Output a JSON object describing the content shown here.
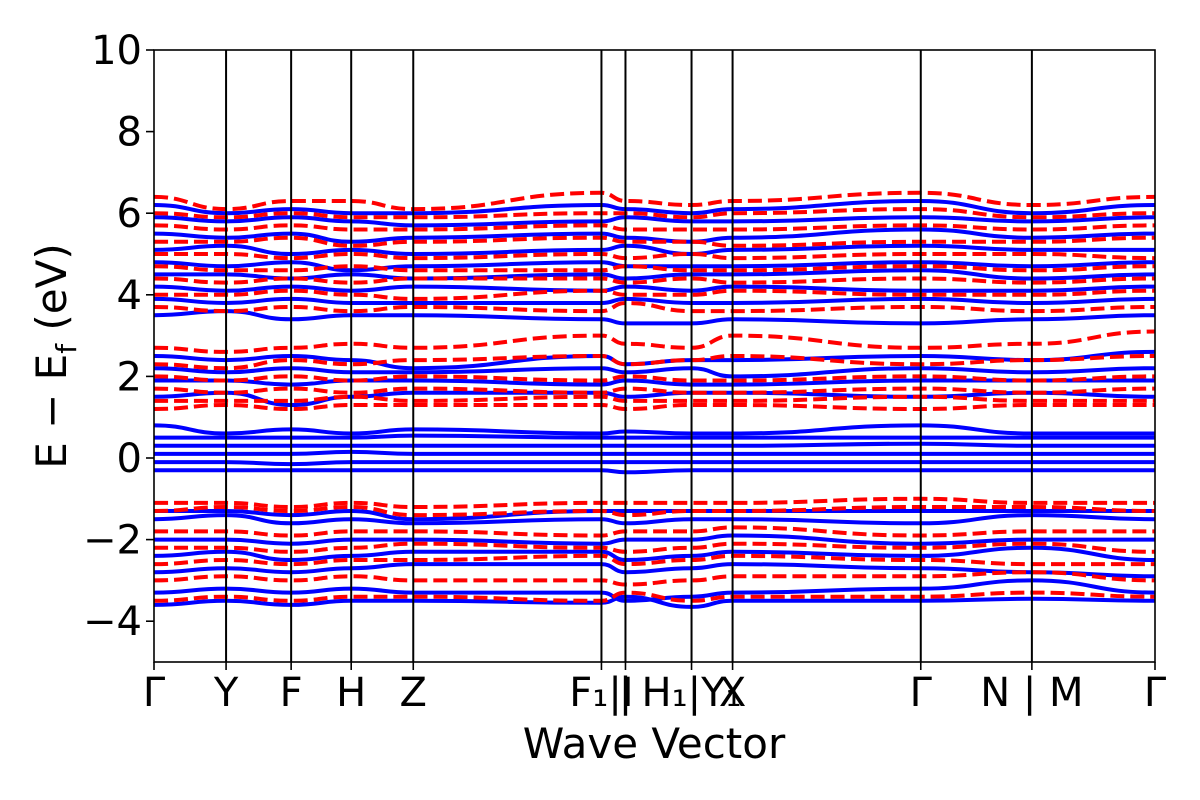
{
  "chart_data": {
    "type": "line",
    "title": "",
    "xlabel": "Wave Vector",
    "ylabel": {
      "prefix": "E − E",
      "sub": "f",
      "suffix": " (eV)"
    },
    "ylim": [
      -5,
      10
    ],
    "yticks": [
      {
        "value": -4,
        "label": "−4"
      },
      {
        "value": -2,
        "label": "−2"
      },
      {
        "value": 0,
        "label": "0"
      },
      {
        "value": 2,
        "label": "2"
      },
      {
        "value": 4,
        "label": "4"
      },
      {
        "value": 6,
        "label": "6"
      },
      {
        "value": 8,
        "label": "8"
      },
      {
        "value": 10,
        "label": "10"
      }
    ],
    "xlim": [
      0,
      1
    ],
    "kpoints": [
      {
        "x": 0.0,
        "label": "Γ"
      },
      {
        "x": 0.072,
        "label": "Y"
      },
      {
        "x": 0.137,
        "label": "F"
      },
      {
        "x": 0.197,
        "label": "H"
      },
      {
        "x": 0.259,
        "label": "Z"
      },
      {
        "x": 0.447,
        "label": "F₁|I"
      },
      {
        "x": 0.471,
        "label": "|"
      },
      {
        "x": 0.537,
        "label": "H₁|Y₁"
      },
      {
        "x": 0.578,
        "label": "X"
      },
      {
        "x": 0.766,
        "label": "Γ"
      },
      {
        "x": 0.877,
        "label": "N | M"
      },
      {
        "x": 1.0,
        "label": "Γ"
      }
    ],
    "grid": false,
    "colors": {
      "spin_up": "#0000ff",
      "spin_down": "#ff0000",
      "axes": "#000000"
    },
    "series": [
      {
        "style": "solid",
        "color": "#0000ff",
        "bands": [
          [
            -3.6,
            -3.5,
            -3.6,
            -3.5,
            -3.5,
            -3.55,
            -3.4,
            -3.65,
            -3.5,
            -3.5,
            -3.45,
            -3.5,
            -3.6
          ],
          [
            -3.3,
            -3.2,
            -3.3,
            -3.2,
            -3.3,
            -3.3,
            -3.5,
            -3.4,
            -3.3,
            -3.2,
            -3.0,
            -3.3,
            -3.5
          ],
          [
            -2.8,
            -2.7,
            -2.8,
            -2.7,
            -2.6,
            -2.6,
            -2.8,
            -2.7,
            -2.6,
            -2.7,
            -2.8,
            -2.9,
            -2.8
          ],
          [
            -2.4,
            -2.3,
            -2.5,
            -2.4,
            -2.3,
            -2.3,
            -2.5,
            -2.4,
            -2.3,
            -2.4,
            -2.2,
            -2.5,
            -2.4
          ],
          [
            -2.0,
            -2.0,
            -2.1,
            -2.0,
            -2.0,
            -2.1,
            -2.0,
            -2.0,
            -1.9,
            -2.1,
            -2.0,
            -2.0,
            -2.0
          ],
          [
            -1.5,
            -1.4,
            -1.6,
            -1.5,
            -1.6,
            -1.5,
            -1.6,
            -1.5,
            -1.5,
            -1.6,
            -1.4,
            -1.5,
            -1.6
          ],
          [
            -1.3,
            -1.3,
            -1.4,
            -1.3,
            -1.5,
            -1.3,
            -1.3,
            -1.3,
            -1.3,
            -1.3,
            -1.3,
            -1.3,
            -1.3
          ],
          [
            -0.3,
            -0.3,
            -0.3,
            -0.3,
            -0.3,
            -0.3,
            -0.35,
            -0.3,
            -0.3,
            -0.3,
            -0.3,
            -0.3,
            -0.3
          ],
          [
            -0.1,
            -0.1,
            -0.15,
            -0.1,
            -0.1,
            -0.1,
            -0.1,
            -0.1,
            -0.1,
            -0.1,
            -0.1,
            -0.1,
            -0.1
          ],
          [
            0.1,
            0.1,
            0.1,
            0.15,
            0.1,
            0.1,
            0.1,
            0.1,
            0.1,
            0.1,
            0.1,
            0.1,
            0.1
          ],
          [
            0.3,
            0.3,
            0.3,
            0.3,
            0.3,
            0.3,
            0.3,
            0.3,
            0.3,
            0.35,
            0.3,
            0.3,
            0.3
          ],
          [
            0.5,
            0.5,
            0.5,
            0.5,
            0.55,
            0.5,
            0.5,
            0.5,
            0.5,
            0.5,
            0.5,
            0.5,
            0.5
          ],
          [
            0.8,
            0.6,
            0.7,
            0.6,
            0.7,
            0.6,
            0.65,
            0.6,
            0.6,
            0.8,
            0.6,
            0.6,
            0.9
          ],
          [
            1.5,
            1.6,
            1.3,
            1.5,
            1.6,
            1.6,
            1.5,
            1.6,
            1.6,
            1.5,
            1.6,
            1.5,
            1.5
          ],
          [
            1.9,
            1.9,
            1.8,
            1.9,
            1.9,
            1.8,
            1.9,
            1.8,
            1.8,
            1.9,
            1.9,
            1.9,
            1.8
          ],
          [
            2.2,
            2.1,
            2.2,
            2.1,
            2.1,
            2.2,
            2.1,
            2.2,
            2.0,
            2.2,
            2.1,
            2.2,
            2.2
          ],
          [
            2.5,
            2.4,
            2.5,
            2.4,
            2.2,
            2.5,
            2.3,
            2.4,
            2.4,
            2.5,
            2.4,
            2.6,
            2.5
          ],
          [
            3.5,
            3.6,
            3.4,
            3.5,
            3.5,
            3.4,
            3.3,
            3.3,
            3.4,
            3.3,
            3.4,
            3.5,
            3.6
          ],
          [
            3.9,
            3.8,
            3.9,
            3.8,
            3.8,
            3.8,
            3.9,
            3.8,
            3.8,
            3.9,
            3.8,
            3.9,
            3.9
          ],
          [
            4.2,
            4.1,
            4.2,
            4.1,
            4.2,
            4.1,
            4.2,
            4.1,
            4.2,
            4.1,
            4.1,
            4.2,
            4.2
          ],
          [
            4.5,
            4.5,
            4.4,
            4.5,
            4.4,
            4.5,
            4.4,
            4.5,
            4.5,
            4.6,
            4.4,
            4.5,
            4.5
          ],
          [
            4.8,
            4.7,
            4.8,
            4.6,
            4.7,
            4.8,
            4.7,
            4.7,
            4.7,
            4.8,
            4.7,
            4.8,
            4.8
          ],
          [
            5.1,
            5.2,
            5.0,
            5.1,
            5.0,
            5.1,
            5.2,
            5.0,
            5.1,
            5.2,
            5.1,
            5.1,
            5.1
          ],
          [
            5.5,
            5.4,
            5.5,
            5.3,
            5.4,
            5.5,
            5.4,
            5.3,
            5.4,
            5.6,
            5.4,
            5.5,
            5.5
          ],
          [
            5.9,
            5.8,
            5.9,
            5.8,
            5.7,
            5.8,
            5.9,
            5.8,
            5.8,
            5.9,
            5.8,
            5.9,
            5.9
          ],
          [
            6.2,
            6.0,
            6.1,
            6.0,
            6.0,
            6.2,
            6.1,
            6.0,
            6.1,
            6.3,
            6.0,
            6.2,
            6.2
          ]
        ]
      },
      {
        "style": "dashed",
        "color": "#ff0000",
        "bands": [
          [
            -3.5,
            -3.4,
            -3.5,
            -3.4,
            -3.4,
            -3.5,
            -3.3,
            -3.5,
            -3.4,
            -3.4,
            -3.3,
            -3.4,
            -3.4
          ],
          [
            -3.0,
            -2.9,
            -3.0,
            -2.9,
            -3.0,
            -3.0,
            -3.1,
            -3.0,
            -2.9,
            -2.9,
            -2.8,
            -3.0,
            -3.1
          ],
          [
            -2.6,
            -2.5,
            -2.6,
            -2.5,
            -2.5,
            -2.4,
            -2.6,
            -2.5,
            -2.4,
            -2.5,
            -2.6,
            -2.6,
            -2.6
          ],
          [
            -2.2,
            -2.2,
            -2.3,
            -2.2,
            -2.1,
            -2.2,
            -2.3,
            -2.2,
            -2.1,
            -2.2,
            -2.1,
            -2.3,
            -2.2
          ],
          [
            -1.8,
            -1.8,
            -1.9,
            -1.8,
            -1.8,
            -1.9,
            -1.8,
            -1.8,
            -1.7,
            -1.9,
            -1.8,
            -1.8,
            -1.8
          ],
          [
            -1.3,
            -1.2,
            -1.3,
            -1.2,
            -1.4,
            -1.3,
            -1.4,
            -1.3,
            -1.3,
            -1.2,
            -1.2,
            -1.3,
            -1.3
          ],
          [
            -1.1,
            -1.1,
            -1.2,
            -1.1,
            -1.2,
            -1.1,
            -1.1,
            -1.1,
            -1.1,
            -1.0,
            -1.1,
            -1.1,
            -1.0
          ],
          [
            1.2,
            1.3,
            1.2,
            1.3,
            1.3,
            1.3,
            1.2,
            1.3,
            1.3,
            1.2,
            1.3,
            1.3,
            1.2
          ],
          [
            1.4,
            1.4,
            1.4,
            1.5,
            1.4,
            1.5,
            1.4,
            1.4,
            1.4,
            1.5,
            1.4,
            1.4,
            1.4
          ],
          [
            1.7,
            1.6,
            1.7,
            1.6,
            1.7,
            1.6,
            1.7,
            1.6,
            1.6,
            1.7,
            1.6,
            1.7,
            1.7
          ],
          [
            2.0,
            1.9,
            2.0,
            1.9,
            2.0,
            1.9,
            2.0,
            1.9,
            1.9,
            2.0,
            1.9,
            2.0,
            2.0
          ],
          [
            2.3,
            2.2,
            2.4,
            2.3,
            2.4,
            2.5,
            2.3,
            2.4,
            2.5,
            2.3,
            2.4,
            2.5,
            2.3
          ],
          [
            2.7,
            2.6,
            2.7,
            2.8,
            2.7,
            3.0,
            2.8,
            2.7,
            3.0,
            2.7,
            2.8,
            3.1,
            2.7
          ],
          [
            3.7,
            3.6,
            3.7,
            3.6,
            3.7,
            3.6,
            3.8,
            3.6,
            3.6,
            3.7,
            3.6,
            3.7,
            3.7
          ],
          [
            4.0,
            4.0,
            4.1,
            4.0,
            3.9,
            4.1,
            4.0,
            4.0,
            4.1,
            4.0,
            4.0,
            4.1,
            4.0
          ],
          [
            4.4,
            4.3,
            4.4,
            4.3,
            4.4,
            4.4,
            4.3,
            4.4,
            4.3,
            4.4,
            4.3,
            4.4,
            4.4
          ],
          [
            4.7,
            4.6,
            4.6,
            4.7,
            4.6,
            4.6,
            4.7,
            4.6,
            4.6,
            4.7,
            4.6,
            4.7,
            4.7
          ],
          [
            5.0,
            5.0,
            4.9,
            5.0,
            4.9,
            5.0,
            4.9,
            5.0,
            4.9,
            5.0,
            5.0,
            4.9,
            5.0
          ],
          [
            5.3,
            5.3,
            5.4,
            5.2,
            5.3,
            5.4,
            5.3,
            5.3,
            5.2,
            5.3,
            5.3,
            5.4,
            5.3
          ],
          [
            5.7,
            5.6,
            5.7,
            5.6,
            5.6,
            5.7,
            5.6,
            5.6,
            5.6,
            5.7,
            5.6,
            5.7,
            5.7
          ],
          [
            6.0,
            5.9,
            6.0,
            5.9,
            5.9,
            6.0,
            6.0,
            5.9,
            6.0,
            6.1,
            5.9,
            6.0,
            6.0
          ],
          [
            6.4,
            6.1,
            6.3,
            6.3,
            6.1,
            6.5,
            6.3,
            6.2,
            6.3,
            6.5,
            6.2,
            6.4,
            6.5
          ]
        ]
      }
    ]
  }
}
